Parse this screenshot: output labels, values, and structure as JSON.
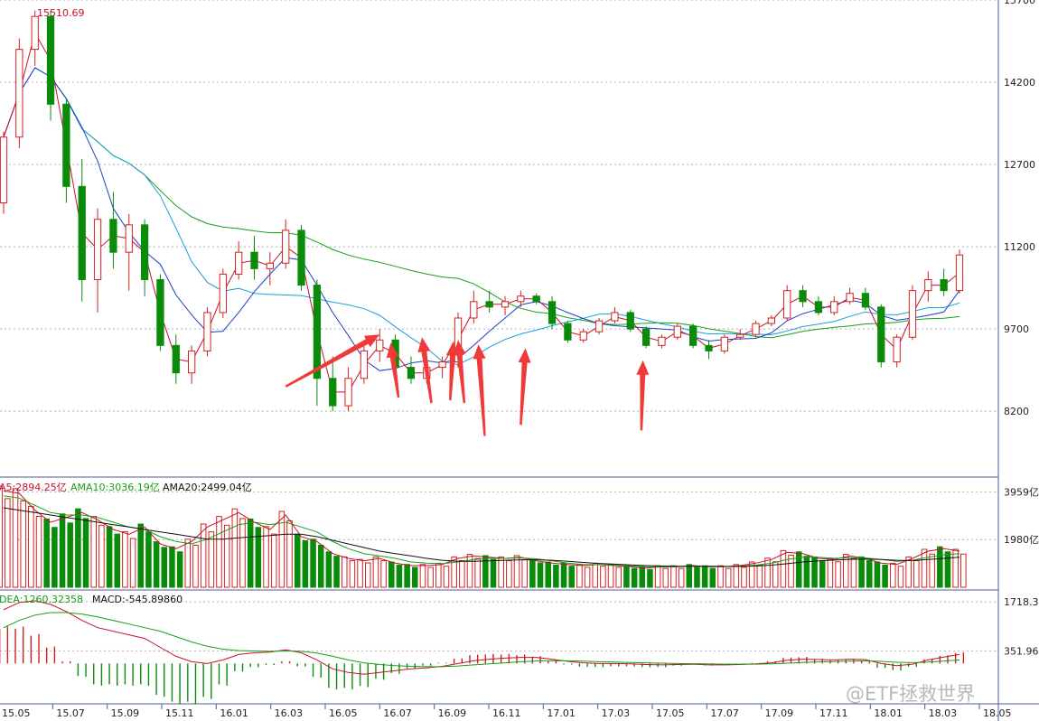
{
  "watermark": "@ETF拯救世界",
  "colors": {
    "up": "#d42020",
    "down": "#0a8c0a",
    "ma5": "#c8102e",
    "ma10": "#1c3fc8",
    "ma20": "#1a9fd8",
    "ma60": "#16a016",
    "arrow": "#f03a3a",
    "grid": "#b0b0b0",
    "border": "#4a5fa0"
  },
  "price_panel": {
    "peak_label": "15510.69",
    "y_ticks": [
      "15700",
      "14200",
      "12700",
      "11200",
      "9700",
      "8200"
    ],
    "y_tick_values": [
      15700,
      14200,
      12700,
      11200,
      9700,
      8200
    ],
    "y_range": [
      7000,
      15700
    ],
    "arrows": [
      {
        "from": {
          "index": 18.0,
          "price": 8650
        },
        "to": {
          "index": 24.0,
          "price": 9600
        }
      },
      {
        "from": {
          "index": 25.2,
          "price": 8450
        },
        "to": {
          "index": 24.7,
          "price": 9450
        }
      },
      {
        "from": {
          "index": 27.3,
          "price": 8350
        },
        "to": {
          "index": 26.7,
          "price": 9550
        }
      },
      {
        "from": {
          "index": 28.5,
          "price": 8400
        },
        "to": {
          "index": 28.7,
          "price": 9480
        }
      },
      {
        "from": {
          "index": 29.4,
          "price": 8350
        },
        "to": {
          "index": 29.0,
          "price": 9500
        }
      },
      {
        "from": {
          "index": 30.7,
          "price": 7750
        },
        "to": {
          "index": 30.3,
          "price": 9420
        }
      },
      {
        "from": {
          "index": 33.0,
          "price": 7950
        },
        "to": {
          "index": 33.3,
          "price": 9350
        }
      },
      {
        "from": {
          "index": 40.7,
          "price": 7850
        },
        "to": {
          "index": 40.8,
          "price": 9130
        }
      }
    ]
  },
  "volume_panel": {
    "legend": [
      {
        "text": "A5:2894.25亿",
        "color": "#c8102e"
      },
      {
        "text": "AMA10:3036.19亿",
        "color": "#16a016"
      },
      {
        "text": "AMA20:2499.04亿",
        "color": "#111111"
      }
    ],
    "y_ticks": [
      "3959亿",
      "1980亿"
    ],
    "y_tick_values": [
      3959,
      1980
    ],
    "y_max": 4500
  },
  "macd_panel": {
    "legend": [
      {
        "text": "DEA:1260.32358",
        "color": "#16a016"
      },
      {
        "text": "MACD:-545.89860",
        "color": "#111111"
      }
    ],
    "y_ticks": [
      "1718.38",
      "351.96"
    ],
    "y_tick_values": [
      1718.38,
      351.96
    ],
    "y_range": [
      -1100,
      2000
    ]
  },
  "x_labels": [
    "15.05",
    "15.07",
    "15.09",
    "15.11",
    "16.01",
    "16.03",
    "16.05",
    "16.07",
    "16.09",
    "16.11",
    "17.01",
    "17.03",
    "17.05",
    "17.07",
    "17.09",
    "17.11",
    "18.01",
    "18.03",
    "18.05"
  ],
  "chart_data": {
    "type": "candlestick",
    "x_unit": "bi-weekly bars (index 0 = 2015-05)",
    "candles": [
      [
        12000,
        13300,
        11800,
        13200
      ],
      [
        13200,
        15000,
        13000,
        14800
      ],
      [
        14800,
        15510,
        14500,
        15400
      ],
      [
        15400,
        15500,
        13500,
        13800
      ],
      [
        13800,
        13900,
        12000,
        12300
      ],
      [
        12300,
        12800,
        10200,
        10600
      ],
      [
        10600,
        11900,
        10000,
        11700
      ],
      [
        11700,
        12200,
        10800,
        11100
      ],
      [
        11100,
        11800,
        10400,
        11600
      ],
      [
        11600,
        11700,
        10300,
        10600
      ],
      [
        10600,
        10700,
        9300,
        9400
      ],
      [
        9400,
        9600,
        8700,
        8900
      ],
      [
        8900,
        9400,
        8700,
        9300
      ],
      [
        9300,
        10100,
        9200,
        10000
      ],
      [
        10000,
        10800,
        9900,
        10700
      ],
      [
        10700,
        11300,
        10600,
        11100
      ],
      [
        11100,
        11400,
        10600,
        10800
      ],
      [
        10800,
        11100,
        10500,
        10900
      ],
      [
        10900,
        11700,
        10800,
        11500
      ],
      [
        11500,
        11600,
        10400,
        10500
      ],
      [
        10500,
        10600,
        8300,
        8800
      ],
      [
        8800,
        9200,
        8200,
        8300
      ],
      [
        8300,
        9000,
        8200,
        8800
      ],
      [
        8800,
        9400,
        8700,
        9300
      ],
      [
        9300,
        9700,
        9100,
        9500
      ],
      [
        9500,
        9600,
        8900,
        9000
      ],
      [
        9000,
        9200,
        8700,
        8800
      ],
      [
        8800,
        9100,
        8700,
        9000
      ],
      [
        9000,
        9200,
        8800,
        9100
      ],
      [
        9100,
        10000,
        9000,
        9900
      ],
      [
        9900,
        10400,
        9800,
        10200
      ],
      [
        10200,
        10400,
        10000,
        10100
      ],
      [
        10100,
        10300,
        9950,
        10200
      ],
      [
        10200,
        10400,
        10100,
        10300
      ],
      [
        10300,
        10350,
        10150,
        10200
      ],
      [
        10200,
        10300,
        9700,
        9800
      ],
      [
        9800,
        9850,
        9450,
        9500
      ],
      [
        9500,
        9700,
        9450,
        9650
      ],
      [
        9650,
        9900,
        9600,
        9850
      ],
      [
        9850,
        10100,
        9800,
        10000
      ],
      [
        10000,
        10050,
        9650,
        9700
      ],
      [
        9700,
        9750,
        9350,
        9400
      ],
      [
        9400,
        9600,
        9350,
        9550
      ],
      [
        9550,
        9800,
        9500,
        9750
      ],
      [
        9750,
        9800,
        9350,
        9400
      ],
      [
        9400,
        9500,
        9150,
        9300
      ],
      [
        9300,
        9600,
        9250,
        9550
      ],
      [
        9550,
        9700,
        9500,
        9600
      ],
      [
        9600,
        9850,
        9550,
        9800
      ],
      [
        9800,
        9950,
        9750,
        9900
      ],
      [
        9900,
        10500,
        9850,
        10400
      ],
      [
        10400,
        10500,
        10100,
        10200
      ],
      [
        10200,
        10300,
        9950,
        10000
      ],
      [
        10000,
        10300,
        9950,
        10200
      ],
      [
        10200,
        10450,
        10150,
        10350
      ],
      [
        10350,
        10450,
        10050,
        10100
      ],
      [
        10100,
        10150,
        9000,
        9100
      ],
      [
        9100,
        9600,
        9000,
        9550
      ],
      [
        9550,
        10500,
        9500,
        10400
      ],
      [
        10400,
        10750,
        10200,
        10600
      ],
      [
        10600,
        10800,
        10300,
        10400
      ],
      [
        10400,
        11150,
        10350,
        11050
      ]
    ],
    "series": [
      {
        "name": "A5",
        "values": [
          4000,
          3900,
          3200,
          2700,
          2900,
          3100,
          2800,
          2400,
          2200,
          2500,
          1800,
          1600,
          1900,
          2500,
          2800,
          3100,
          2700,
          2400,
          3000,
          2100,
          1900,
          1400,
          1200,
          1100,
          1200,
          1000,
          900,
          900,
          950,
          1200,
          1300,
          1250,
          1200,
          1250,
          1100,
          1000,
          950,
          900,
          950,
          900,
          850,
          800,
          850,
          850,
          900,
          850,
          850,
          900,
          1000,
          1150,
          1450,
          1400,
          1200,
          1150,
          1300,
          1200,
          1000,
          950,
          1200,
          1500,
          1600,
          1500
        ]
      },
      {
        "name": "AMA10",
        "values": [
          3800,
          3700,
          3400,
          3100,
          3000,
          3000,
          2900,
          2700,
          2500,
          2400,
          2100,
          1900,
          1800,
          2000,
          2300,
          2600,
          2700,
          2600,
          2700,
          2500,
          2300,
          1900,
          1600,
          1400,
          1300,
          1200,
          1050,
          1000,
          980,
          1050,
          1150,
          1200,
          1200,
          1220,
          1180,
          1100,
          1000,
          950,
          940,
          920,
          880,
          850,
          840,
          850,
          870,
          870,
          860,
          870,
          920,
          1000,
          1150,
          1250,
          1250,
          1200,
          1230,
          1220,
          1150,
          1080,
          1120,
          1250,
          1350,
          1400
        ]
      },
      {
        "name": "AMA20",
        "values": [
          3300,
          3200,
          3100,
          3000,
          2900,
          2800,
          2700,
          2600,
          2500,
          2400,
          2300,
          2200,
          2100,
          2000,
          2000,
          2050,
          2100,
          2150,
          2200,
          2200,
          2100,
          1950,
          1800,
          1650,
          1500,
          1400,
          1300,
          1200,
          1120,
          1080,
          1080,
          1100,
          1120,
          1140,
          1140,
          1120,
          1080,
          1030,
          990,
          960,
          930,
          900,
          880,
          870,
          870,
          870,
          865,
          865,
          880,
          920,
          980,
          1050,
          1100,
          1130,
          1160,
          1170,
          1150,
          1120,
          1110,
          1150,
          1200,
          1250
        ]
      }
    ],
    "macd": {
      "dif": [
        1500,
        1700,
        1750,
        1650,
        1450,
        1200,
        1000,
        900,
        800,
        700,
        450,
        200,
        50,
        0,
        100,
        250,
        300,
        320,
        380,
        300,
        100,
        -150,
        -250,
        -300,
        -250,
        -200,
        -150,
        -120,
        -80,
        0,
        80,
        120,
        150,
        170,
        170,
        120,
        60,
        20,
        0,
        0,
        -10,
        -30,
        -40,
        -30,
        -20,
        -40,
        -40,
        -30,
        -10,
        20,
        90,
        120,
        110,
        100,
        120,
        110,
        0,
        -60,
        -20,
        100,
        180,
        250
      ],
      "dea": [
        1000,
        1200,
        1350,
        1420,
        1420,
        1380,
        1300,
        1200,
        1100,
        1000,
        900,
        750,
        600,
        480,
        400,
        360,
        350,
        340,
        350,
        340,
        290,
        200,
        100,
        20,
        -30,
        -60,
        -80,
        -90,
        -90,
        -70,
        -40,
        -10,
        20,
        50,
        70,
        80,
        75,
        65,
        50,
        40,
        30,
        20,
        10,
        0,
        -5,
        -12,
        -18,
        -20,
        -18,
        -10,
        10,
        30,
        45,
        55,
        65,
        75,
        60,
        35,
        25,
        40,
        70,
        100
      ],
      "macd": [
        1000,
        1000,
        800,
        460,
        60,
        -360,
        -600,
        -600,
        -600,
        -600,
        -900,
        -1100,
        -1100,
        -960,
        -600,
        -220,
        -100,
        -40,
        60,
        -80,
        -380,
        -700,
        -700,
        -640,
        -440,
        -280,
        -140,
        -60,
        20,
        140,
        240,
        260,
        260,
        240,
        200,
        80,
        -30,
        -90,
        -100,
        -80,
        -80,
        -100,
        -100,
        -60,
        -30,
        -56,
        -44,
        -20,
        16,
        60,
        160,
        180,
        130,
        90,
        110,
        70,
        -120,
        -190,
        -90,
        120,
        220,
        300
      ]
    }
  }
}
